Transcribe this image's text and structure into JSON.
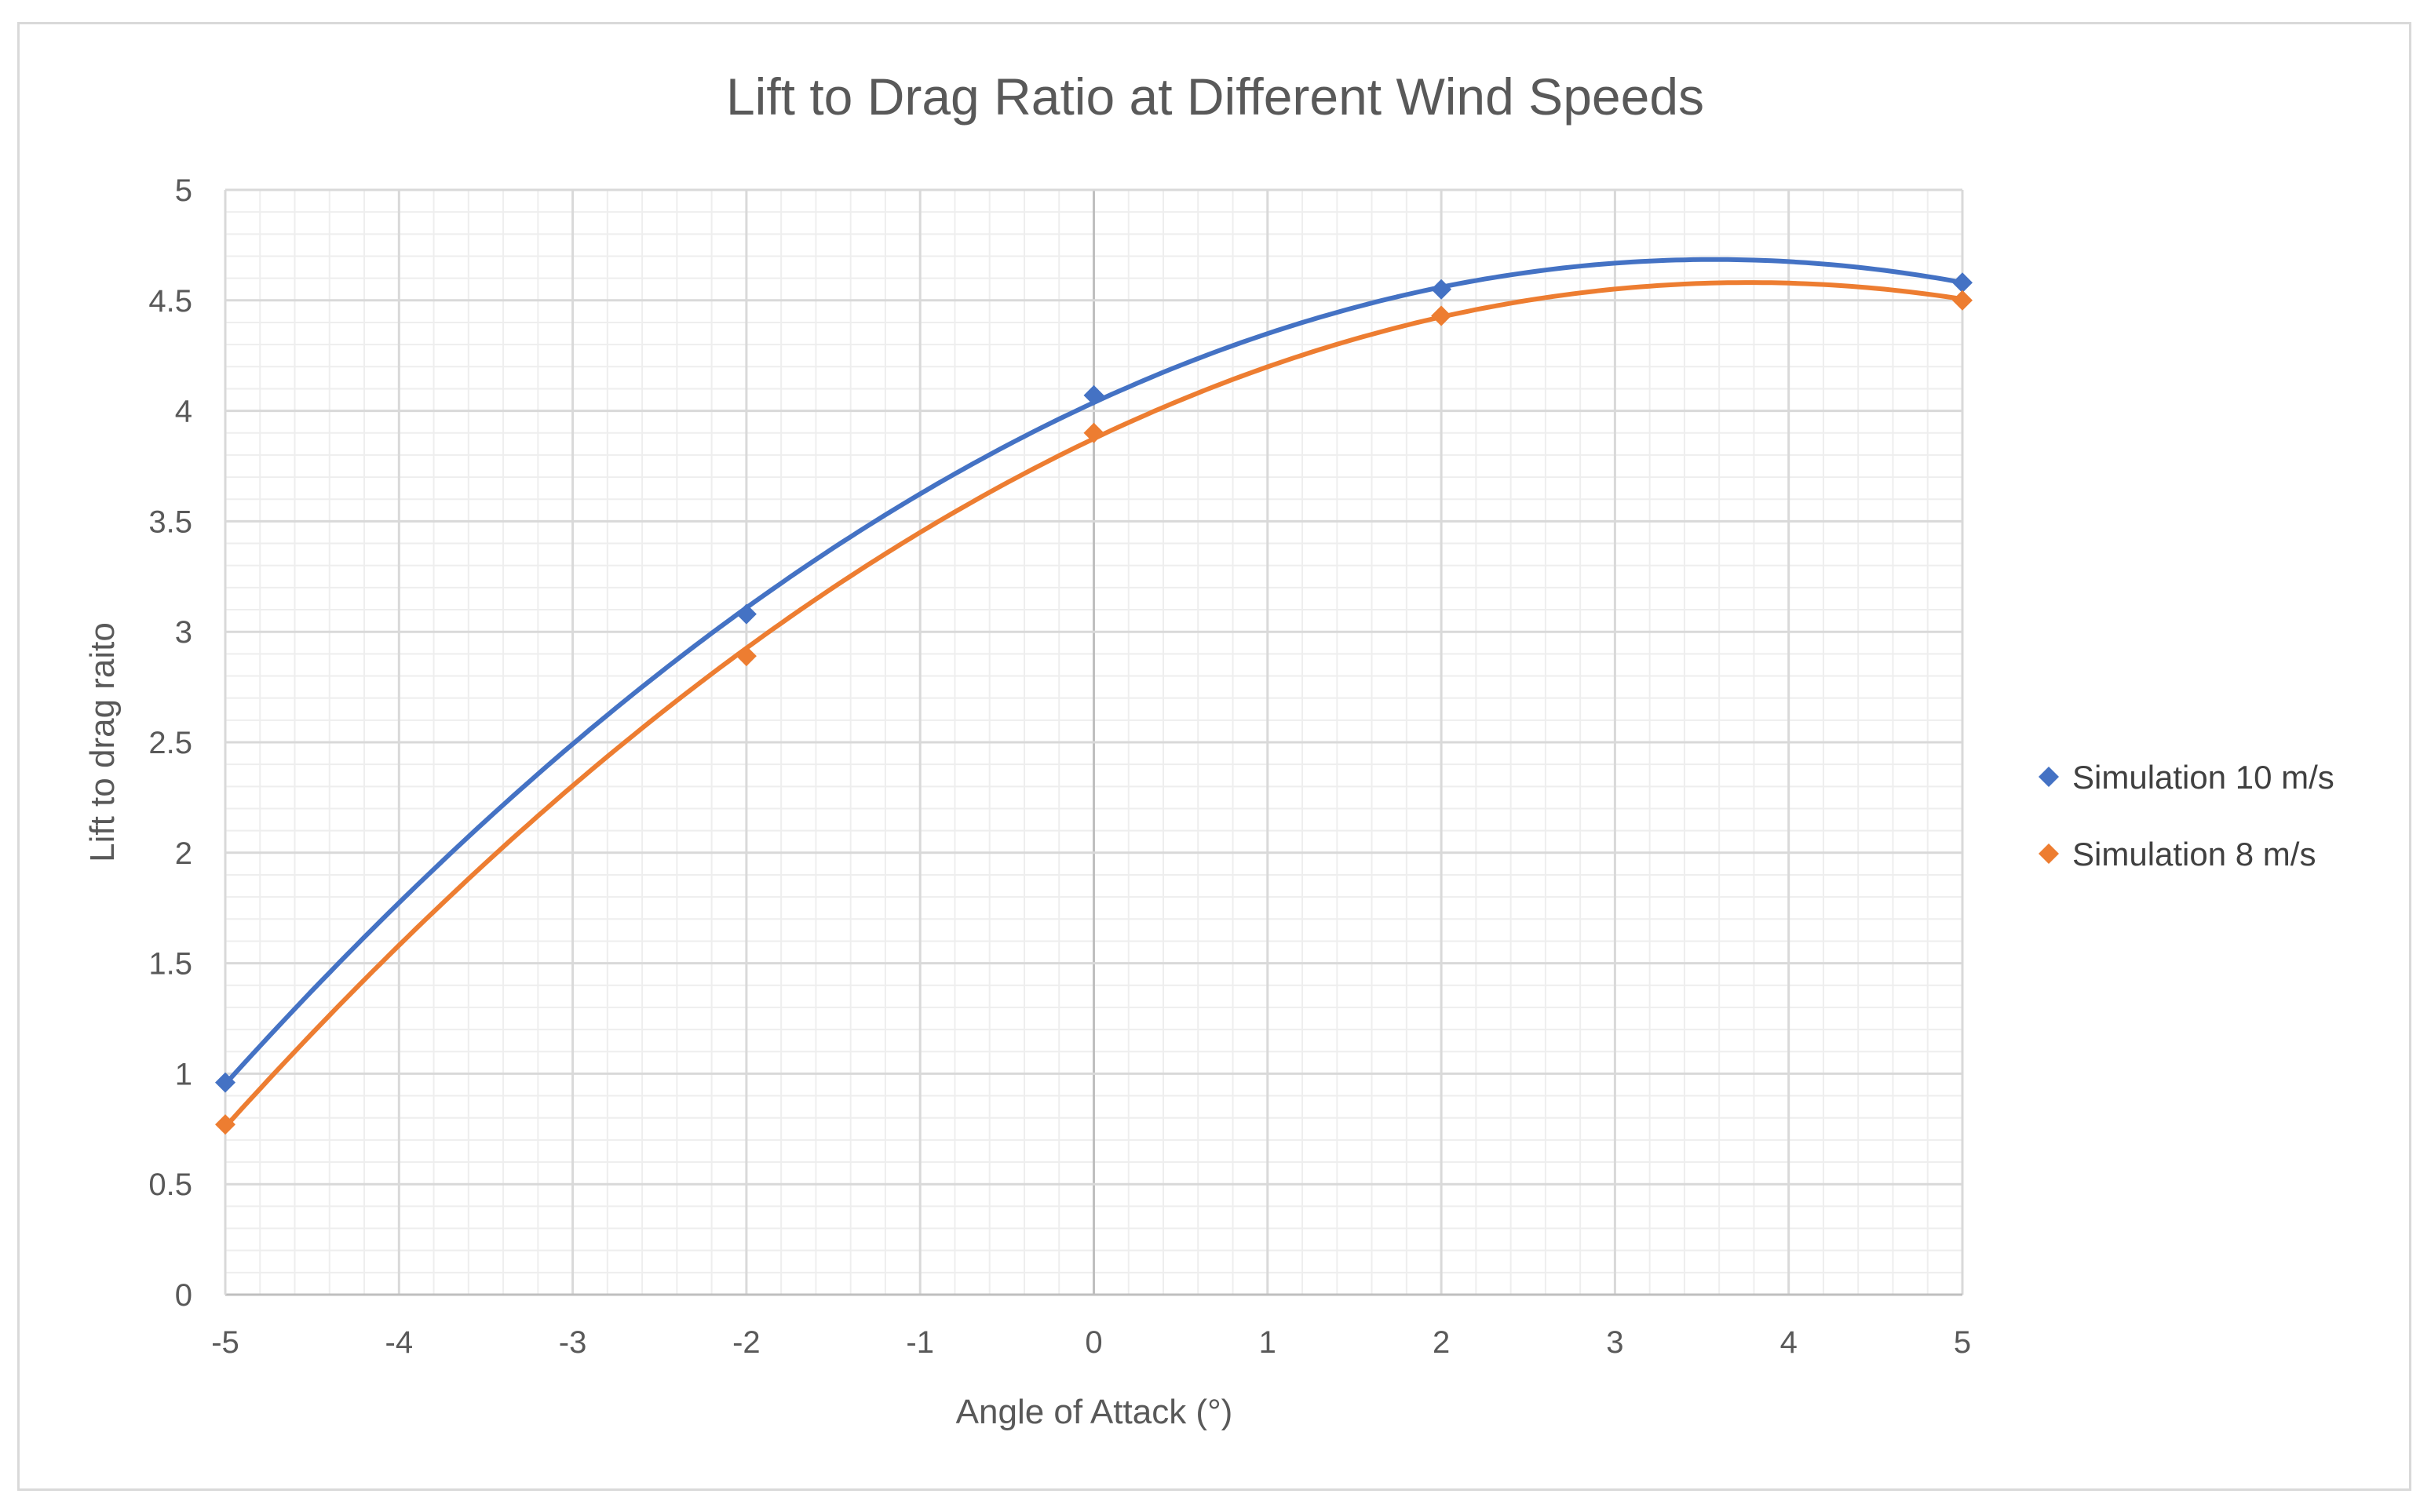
{
  "chart_data": {
    "type": "scatter",
    "title": "Lift to Drag Ratio at Different Wind Speeds",
    "xlabel": "Angle of Attack (°)",
    "ylabel": "Lift to drag raito",
    "xlim": [
      -5,
      5
    ],
    "ylim": [
      0,
      5
    ],
    "x_ticks": [
      -5,
      -4,
      -3,
      -2,
      -1,
      0,
      1,
      2,
      3,
      4,
      5
    ],
    "y_ticks": [
      0,
      0.5,
      1,
      1.5,
      2,
      2.5,
      3,
      3.5,
      4,
      4.5,
      5
    ],
    "x_tick_labels": [
      "-5",
      "-4",
      "-3",
      "-2",
      "-1",
      "0",
      "1",
      "2",
      "3",
      "4",
      "5"
    ],
    "y_tick_labels": [
      "0",
      "0.5",
      "1",
      "1.5",
      "2",
      "2.5",
      "3",
      "3.5",
      "4",
      "4.5",
      "5"
    ],
    "grid": true,
    "minor_grid": true,
    "smooth_lines": true,
    "legend_position": "right",
    "series": [
      {
        "name": "Simulation 10 m/s",
        "color": "#4472C4",
        "marker": "diamond",
        "x": [
          -5,
          -2,
          0,
          2,
          5
        ],
        "y": [
          0.96,
          3.08,
          4.07,
          4.55,
          4.58
        ]
      },
      {
        "name": "Simulation 8 m/s",
        "color": "#ED7D31",
        "marker": "diamond",
        "x": [
          -5,
          -2,
          0,
          2,
          5
        ],
        "y": [
          0.77,
          2.89,
          3.9,
          4.43,
          4.5
        ]
      }
    ]
  }
}
